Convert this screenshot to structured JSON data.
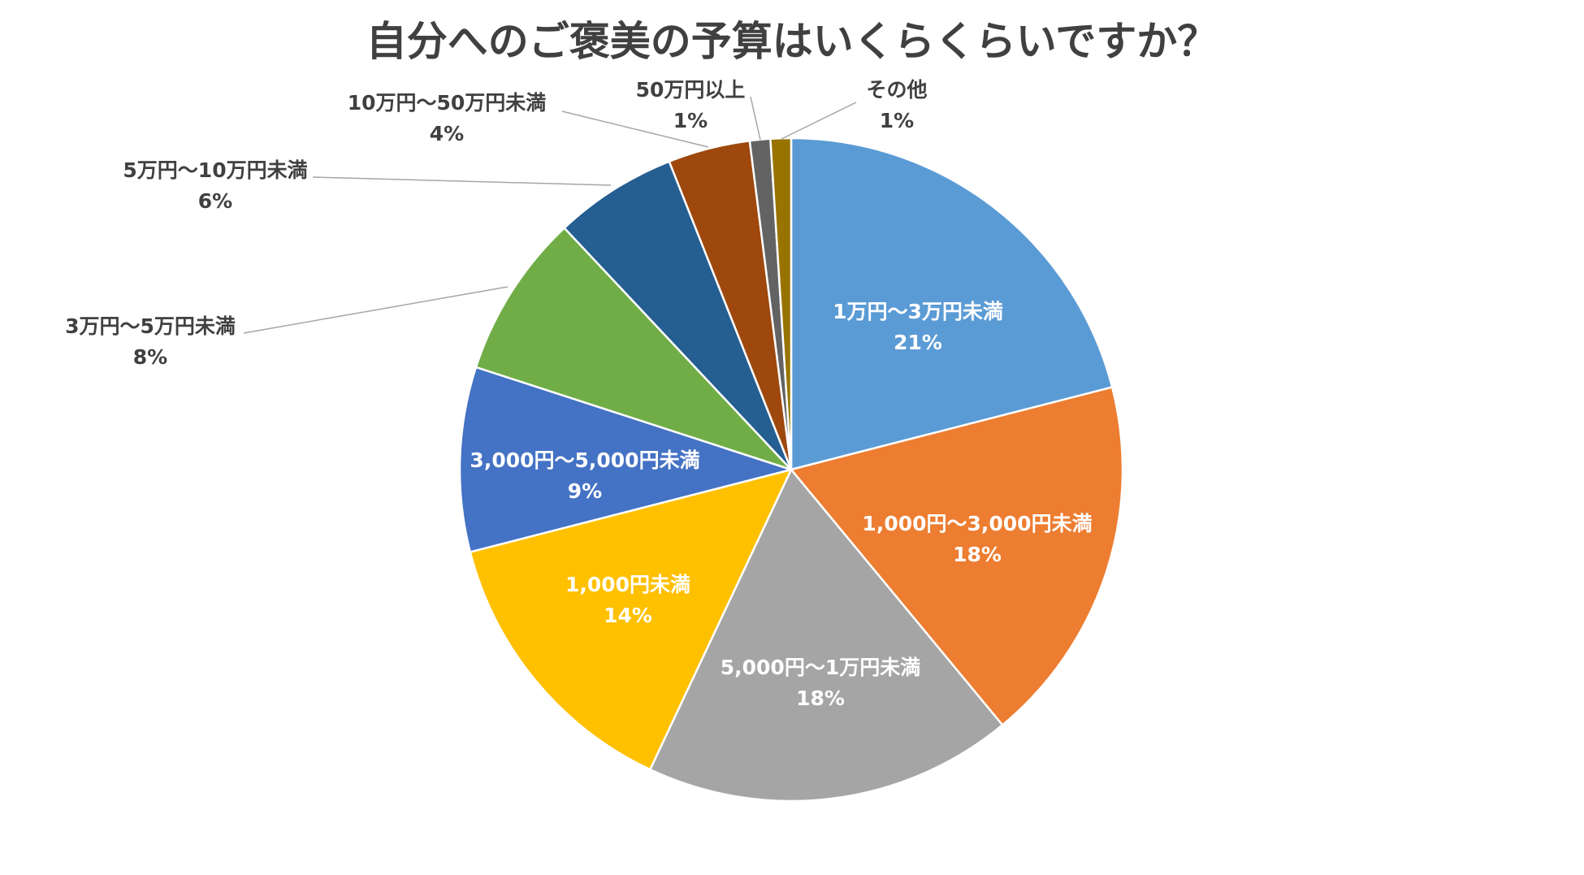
{
  "chart_data": {
    "type": "pie",
    "title": "自分へのご褒美の予算はいくらくらいですか？",
    "start_angle_deg": 0,
    "direction": "clockwise",
    "slices": [
      {
        "name": "1万円～3万円未満",
        "value": 21,
        "label": "21%",
        "color": "#5B9BD5",
        "label_position": "inside"
      },
      {
        "name": "1,000円～3,000円未満",
        "value": 18,
        "label": "18%",
        "color": "#ED7D31",
        "label_position": "inside"
      },
      {
        "name": "5,000円～1万円未満",
        "value": 18,
        "label": "18%",
        "color": "#A5A5A5",
        "label_position": "inside"
      },
      {
        "name": "1,000円未満",
        "value": 14,
        "label": "14%",
        "color": "#FFC000",
        "label_position": "inside"
      },
      {
        "name": "3,000円～5,000円未満",
        "value": 9,
        "label": "9%",
        "color": "#4472C4",
        "label_position": "inside"
      },
      {
        "name": "3万円～5万円未満",
        "value": 8,
        "label": "8%",
        "color": "#70AD47",
        "label_position": "outside"
      },
      {
        "name": "5万円～10万円未満",
        "value": 6,
        "label": "6%",
        "color": "#255E91",
        "label_position": "outside"
      },
      {
        "name": "10万円～50万円未満",
        "value": 4,
        "label": "4%",
        "color": "#9E480E",
        "label_position": "outside"
      },
      {
        "name": "50万円以上",
        "value": 1,
        "label": "1%",
        "color": "#636363",
        "label_position": "outside"
      },
      {
        "name": "その他",
        "value": 1,
        "label": "1%",
        "color": "#997300",
        "label_position": "outside"
      }
    ]
  }
}
